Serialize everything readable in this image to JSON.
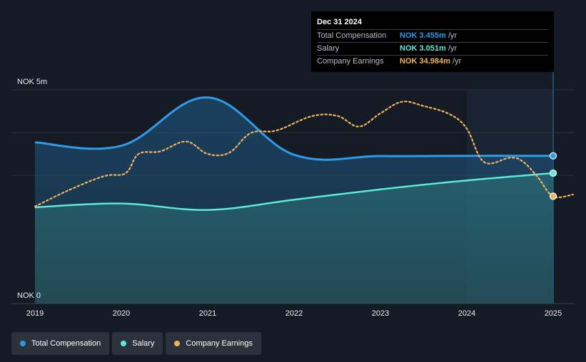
{
  "chart_data": {
    "type": "area",
    "currency": "NOK",
    "ylabels": {
      "top": "NOK 5m",
      "bottom": "NOK 0"
    },
    "ylim": [
      0,
      5
    ],
    "xlim": [
      2019,
      2025.25
    ],
    "x_ticks": [
      "2019",
      "2020",
      "2021",
      "2022",
      "2023",
      "2024",
      "2025"
    ],
    "series": [
      {
        "name": "Total Compensation",
        "color": "#2d9be6",
        "style": "area",
        "points": [
          [
            2019.0,
            3.77
          ],
          [
            2020.0,
            3.69
          ],
          [
            2021.0,
            4.82
          ],
          [
            2022.0,
            3.48
          ],
          [
            2023.0,
            3.45
          ],
          [
            2024.0,
            3.455
          ],
          [
            2025.0,
            3.455
          ]
        ]
      },
      {
        "name": "Salary",
        "color": "#5ee8d6",
        "style": "area",
        "points": [
          [
            2019.0,
            2.25
          ],
          [
            2020.0,
            2.34
          ],
          [
            2021.0,
            2.19
          ],
          [
            2022.0,
            2.43
          ],
          [
            2023.0,
            2.67
          ],
          [
            2024.0,
            2.88
          ],
          [
            2025.0,
            3.051
          ]
        ]
      },
      {
        "name": "Company Earnings",
        "color": "#f2b35c",
        "style": "dotted",
        "points": [
          [
            2019.0,
            2.27
          ],
          [
            2019.4,
            2.66
          ],
          [
            2019.8,
            2.98
          ],
          [
            2020.05,
            3.05
          ],
          [
            2020.2,
            3.5
          ],
          [
            2020.45,
            3.56
          ],
          [
            2020.75,
            3.79
          ],
          [
            2021.0,
            3.5
          ],
          [
            2021.25,
            3.53
          ],
          [
            2021.5,
            3.99
          ],
          [
            2021.8,
            4.05
          ],
          [
            2022.2,
            4.38
          ],
          [
            2022.5,
            4.39
          ],
          [
            2022.75,
            4.14
          ],
          [
            2023.0,
            4.45
          ],
          [
            2023.25,
            4.72
          ],
          [
            2023.5,
            4.62
          ],
          [
            2023.8,
            4.43
          ],
          [
            2024.0,
            4.09
          ],
          [
            2024.2,
            3.31
          ],
          [
            2024.5,
            3.41
          ],
          [
            2024.65,
            3.32
          ],
          [
            2024.82,
            2.96
          ],
          [
            2025.0,
            2.51
          ],
          [
            2025.23,
            2.55
          ]
        ]
      }
    ],
    "forecast_start": 2024.0,
    "highlight_x": 2025.0
  },
  "tooltip": {
    "date": "Dec 31 2024",
    "rows": [
      {
        "label": "Total Compensation",
        "value": "NOK 3.455m",
        "unit": "/yr",
        "color": "#2d9be6"
      },
      {
        "label": "Salary",
        "value": "NOK 3.051m",
        "unit": "/yr",
        "color": "#5ee8d6"
      },
      {
        "label": "Company Earnings",
        "value": "NOK 34.984m",
        "unit": "/yr",
        "color": "#f2b35c"
      }
    ]
  },
  "legend": [
    {
      "label": "Total Compensation",
      "color": "#2d9be6"
    },
    {
      "label": "Salary",
      "color": "#5ee8d6"
    },
    {
      "label": "Company Earnings",
      "color": "#f2b35c"
    }
  ]
}
